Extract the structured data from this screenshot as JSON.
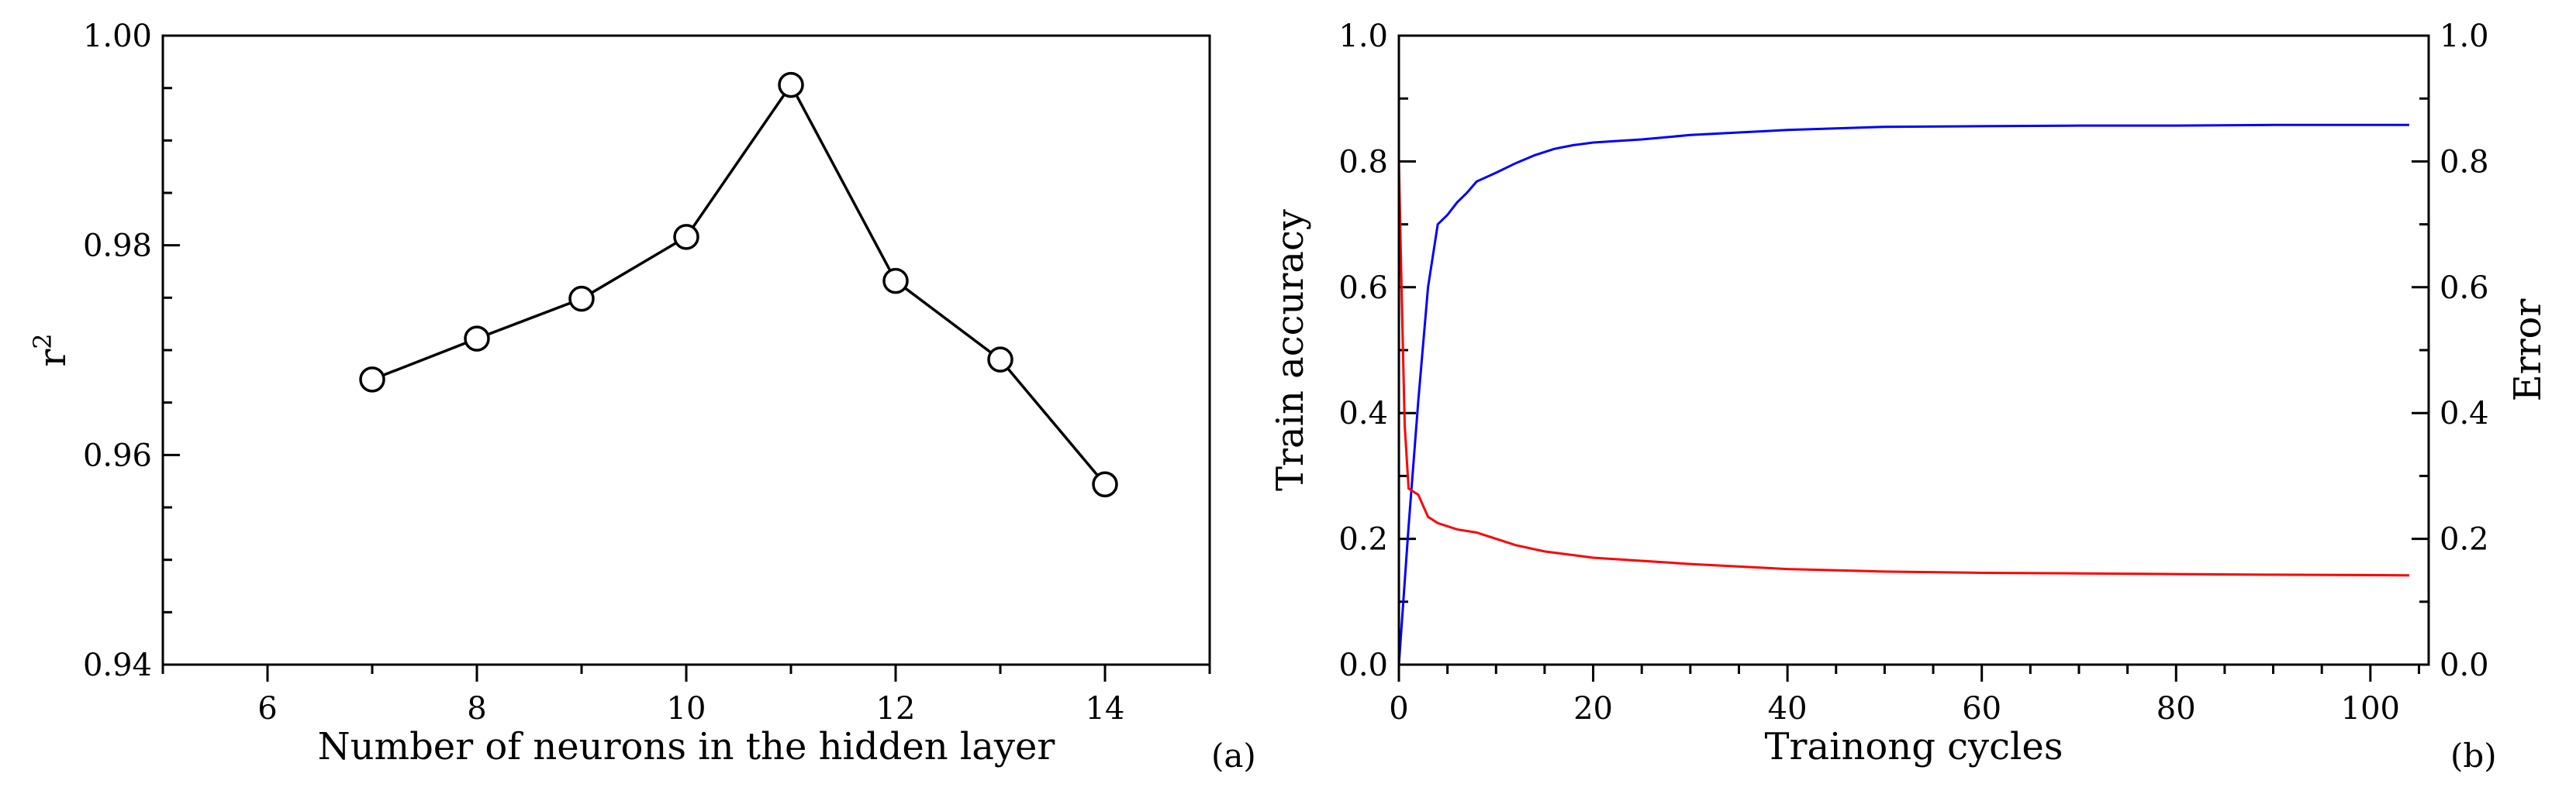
{
  "chart_data": [
    {
      "type": "line",
      "panel_label": "(a)",
      "xlabel": "Number of neurons in the hidden layer",
      "ylabel": "r",
      "ylabel_sup": "2",
      "xlim": [
        5,
        15
      ],
      "ylim": [
        0.94,
        1.0
      ],
      "xticks": [
        6,
        8,
        10,
        12,
        14
      ],
      "xtick_labels": [
        "6",
        "8",
        "10",
        "12",
        "14"
      ],
      "yticks": [
        0.94,
        0.96,
        0.98,
        1.0
      ],
      "ytick_labels": [
        "0.94",
        "0.96",
        "0.98",
        "1.00"
      ],
      "grid": false,
      "colors": {
        "line": "#000000",
        "marker_fill": "#ffffff"
      },
      "series": [
        {
          "marker": "open-circle",
          "x": [
            7,
            8,
            9,
            10,
            11,
            12,
            13,
            14
          ],
          "y": [
            0.9672,
            0.9711,
            0.9749,
            0.9808,
            0.9953,
            0.9766,
            0.9691,
            0.9572
          ]
        }
      ]
    },
    {
      "type": "line",
      "panel_label": "(b)",
      "xlabel": "Trainong cycles",
      "ylabel": "Train accuracy",
      "y2label": "Error",
      "xlim": [
        0,
        106
      ],
      "ylim": [
        0,
        1.0
      ],
      "y2lim": [
        0,
        1.0
      ],
      "xticks": [
        0,
        20,
        40,
        60,
        80,
        100
      ],
      "xtick_labels": [
        "0",
        "20",
        "40",
        "60",
        "80",
        "100"
      ],
      "yticks": [
        0,
        0.2,
        0.4,
        0.6,
        0.8,
        1.0
      ],
      "ytick_labels": [
        "0.0",
        "0.2",
        "0.4",
        "0.6",
        "0.8",
        "1.0"
      ],
      "y2ticks": [
        0,
        0.2,
        0.4,
        0.6,
        0.8,
        1.0
      ],
      "y2tick_labels": [
        "0.0",
        "0.2",
        "0.4",
        "0.6",
        "0.8",
        "1.0"
      ],
      "grid": false,
      "colors": {
        "accuracy": "#0000ff",
        "error": "#ff0000",
        "right_axis": "#ff0000"
      },
      "series": [
        {
          "axis": "left",
          "x": [
            0,
            1,
            2,
            3,
            4,
            5,
            6,
            7,
            8,
            10,
            12,
            14,
            16,
            18,
            20,
            22,
            25,
            30,
            35,
            40,
            50,
            60,
            70,
            80,
            90,
            104
          ],
          "y": [
            0.0,
            0.22,
            0.42,
            0.6,
            0.7,
            0.715,
            0.735,
            0.75,
            0.768,
            0.782,
            0.797,
            0.81,
            0.82,
            0.826,
            0.83,
            0.832,
            0.835,
            0.842,
            0.846,
            0.85,
            0.855,
            0.856,
            0.857,
            0.857,
            0.858,
            0.858
          ]
        },
        {
          "axis": "right",
          "x": [
            0,
            0.3,
            0.6,
            1,
            2,
            3,
            4,
            6,
            8,
            10,
            12,
            15,
            20,
            30,
            40,
            50,
            60,
            70,
            80,
            90,
            104
          ],
          "y": [
            0.8,
            0.58,
            0.38,
            0.28,
            0.27,
            0.235,
            0.225,
            0.215,
            0.21,
            0.2,
            0.19,
            0.18,
            0.17,
            0.16,
            0.152,
            0.148,
            0.146,
            0.145,
            0.144,
            0.143,
            0.142
          ]
        }
      ]
    }
  ]
}
